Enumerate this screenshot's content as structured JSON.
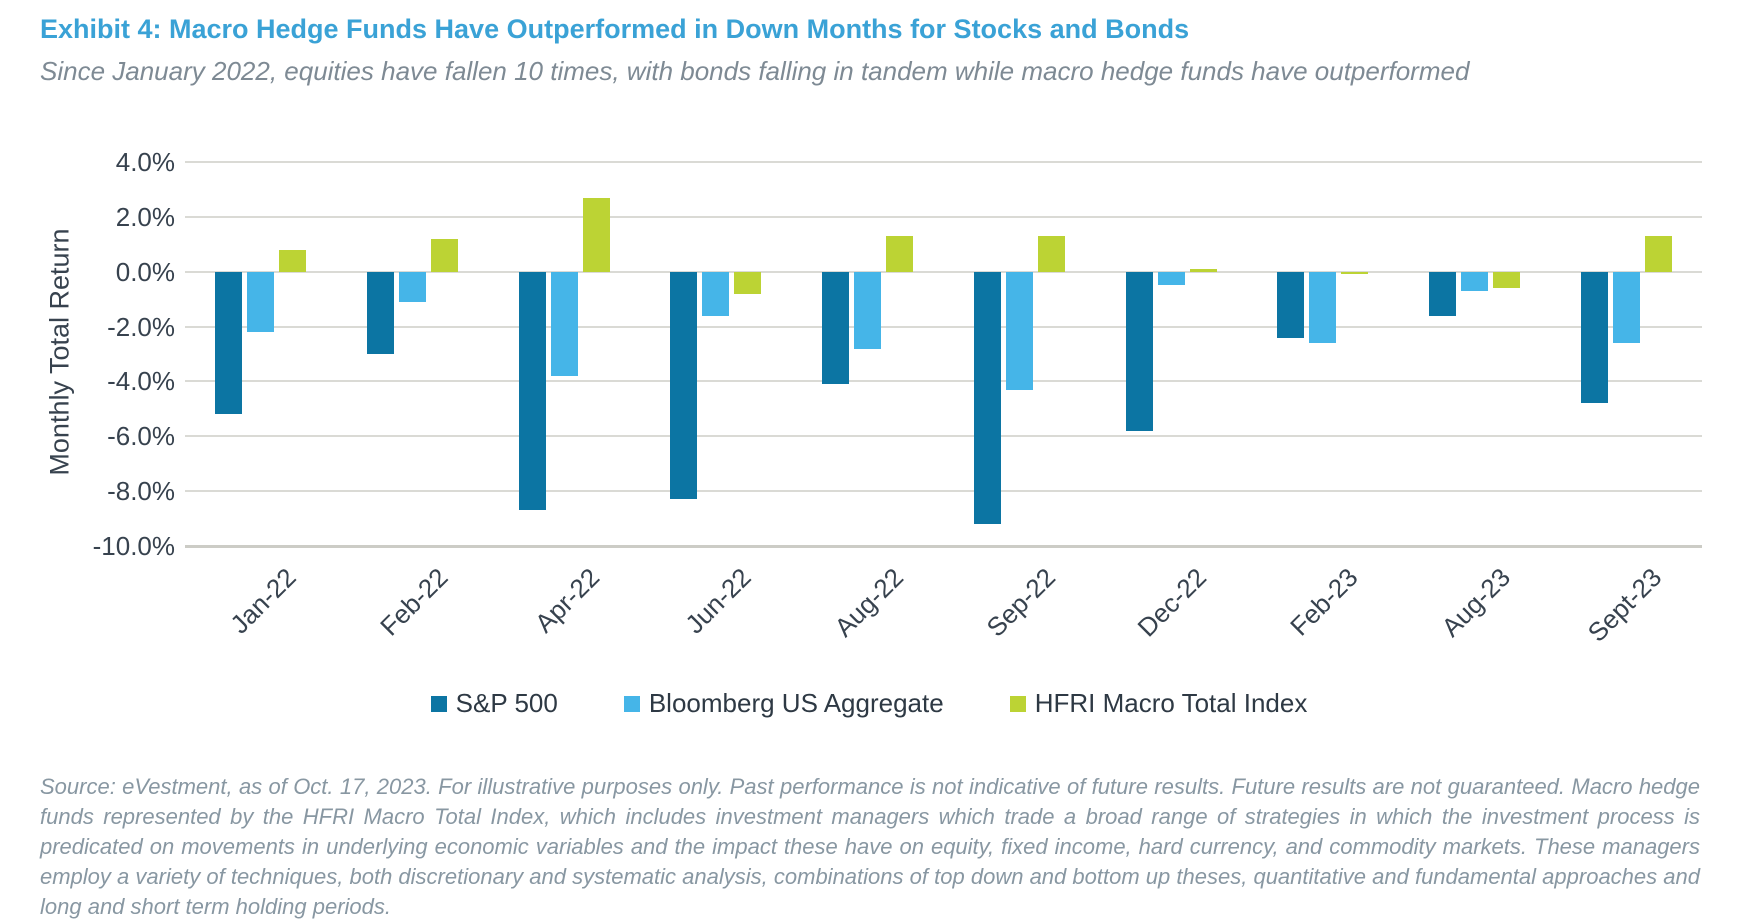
{
  "header": {
    "title": "Exhibit 4: Macro Hedge Funds Have Outperformed in Down Months for Stocks and Bonds",
    "subtitle": "Since January 2022, equities have fallen 10 times, with bonds falling in tandem while macro hedge funds have outperformed"
  },
  "chart_data": {
    "type": "bar",
    "categories": [
      "Jan-22",
      "Feb-22",
      "Apr-22",
      "Jun-22",
      "Aug-22",
      "Sep-22",
      "Dec-22",
      "Feb-23",
      "Aug-23",
      "Sept-23"
    ],
    "series": [
      {
        "name": "S&P 500",
        "color": "#0C75A3",
        "values": [
          -5.2,
          -3.0,
          -8.7,
          -8.3,
          -4.1,
          -9.2,
          -5.8,
          -2.4,
          -1.6,
          -4.8
        ]
      },
      {
        "name": "Bloomberg US Aggregate",
        "color": "#45B5E8",
        "values": [
          -2.2,
          -1.1,
          -3.8,
          -1.6,
          -2.8,
          -4.3,
          -0.5,
          -2.6,
          -0.7,
          -2.6
        ]
      },
      {
        "name": "HFRI Macro Total Index",
        "color": "#BCD334",
        "values": [
          0.8,
          1.2,
          2.7,
          -0.8,
          1.3,
          1.3,
          0.1,
          -0.1,
          -0.6,
          1.3
        ]
      }
    ],
    "title": "",
    "xlabel": "",
    "ylabel": "Monthly Total Return",
    "ylim": [
      -10,
      4
    ],
    "ytick_step": 2,
    "ytick_labels": [
      "4.0%",
      "2.0%",
      "0.0%",
      "-2.0%",
      "-4.0%",
      "-6.0%",
      "-8.0%",
      "-10.0%"
    ],
    "grid": true,
    "legend_position": "bottom"
  },
  "footnote": "Source: eVestment, as of Oct. 17, 2023. For illustrative purposes only. Past performance is not indicative of future results. Future results are not guaranteed. Macro hedge funds represented by the HFRI Macro Total Index, which includes investment managers which trade a broad range of strategies in which the investment process is predicated on movements in underlying economic variables and the impact these have on equity, fixed income, hard currency, and commodity markets. These managers employ a variety of techniques, both discretionary and systematic analysis, combinations of top down and bottom up theses, quantitative and fundamental approaches and long and short term holding periods.",
  "colors": {
    "title": "#3AA2D6",
    "subtitle": "#7E8A94",
    "axis_text": "#37424E",
    "gridline": "#DADAD5",
    "footnote": "#8897A2"
  }
}
